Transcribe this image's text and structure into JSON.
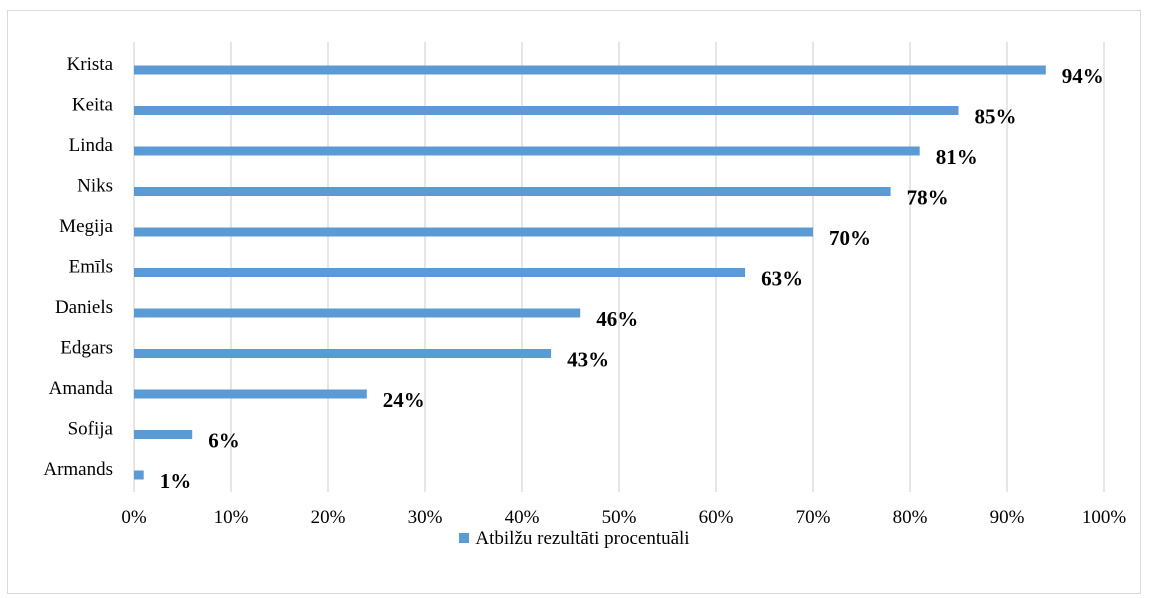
{
  "chart_data": {
    "type": "bar",
    "orientation": "horizontal",
    "categories": [
      "Krista",
      "Keita",
      "Linda",
      "Niks",
      "Megija",
      "Emīls",
      "Daniels",
      "Edgars",
      "Amanda",
      "Sofija",
      "Armands"
    ],
    "series": [
      {
        "name": "Atbilžu rezultāti procentuāli",
        "values": [
          94,
          85,
          81,
          78,
          70,
          63,
          46,
          43,
          24,
          6,
          1
        ],
        "data_labels": [
          "94%",
          "85%",
          "81%",
          "78%",
          "70%",
          "63%",
          "46%",
          "43%",
          "24%",
          "6%",
          "1%"
        ],
        "color": "#5b9bd5"
      }
    ],
    "xlim": [
      0,
      100
    ],
    "xticks": [
      0,
      10,
      20,
      30,
      40,
      50,
      60,
      70,
      80,
      90,
      100
    ],
    "xtick_labels": [
      "0%",
      "10%",
      "20%",
      "30%",
      "40%",
      "50%",
      "60%",
      "70%",
      "80%",
      "90%",
      "100%"
    ],
    "grid": true,
    "grid_color": "#d9d9d9",
    "legend_position": "bottom",
    "title": "",
    "xlabel": "",
    "ylabel": ""
  }
}
